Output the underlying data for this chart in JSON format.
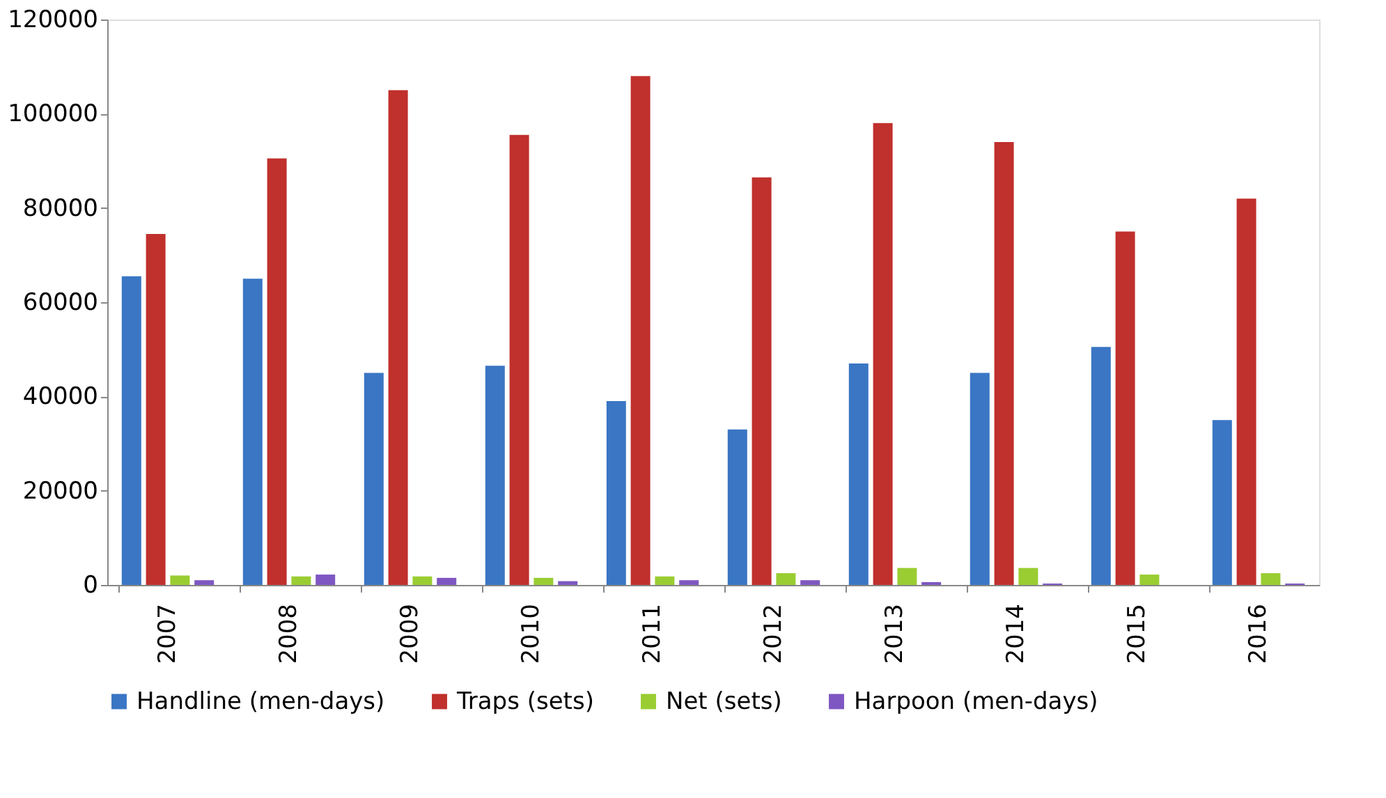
{
  "chart_data": {
    "type": "bar",
    "categories": [
      "2007",
      "2008",
      "2009",
      "2010",
      "2011",
      "2012",
      "2013",
      "2014",
      "2015",
      "2016"
    ],
    "series": [
      {
        "name": "Handline (men-days)",
        "color": "#3a76c4",
        "values": [
          65500,
          65000,
          45000,
          46500,
          39000,
          33000,
          47000,
          45000,
          50500,
          35000
        ]
      },
      {
        "name": "Traps (sets)",
        "color": "#c0302c",
        "values": [
          74500,
          90500,
          105000,
          95500,
          108000,
          86500,
          98000,
          94000,
          75000,
          82000
        ]
      },
      {
        "name": "Net (sets)",
        "color": "#9acd32",
        "values": [
          2000,
          1800,
          1800,
          1500,
          1800,
          2500,
          3600,
          3600,
          2200,
          2500
        ]
      },
      {
        "name": "Harpoon (men-days)",
        "color": "#7e57c2",
        "values": [
          1000,
          2200,
          1500,
          800,
          1000,
          1000,
          600,
          300,
          null,
          300
        ]
      }
    ],
    "ylim": [
      0,
      120000
    ],
    "yticks": [
      0,
      20000,
      40000,
      60000,
      80000,
      100000,
      120000
    ],
    "grid": false,
    "legend": "bottom"
  }
}
